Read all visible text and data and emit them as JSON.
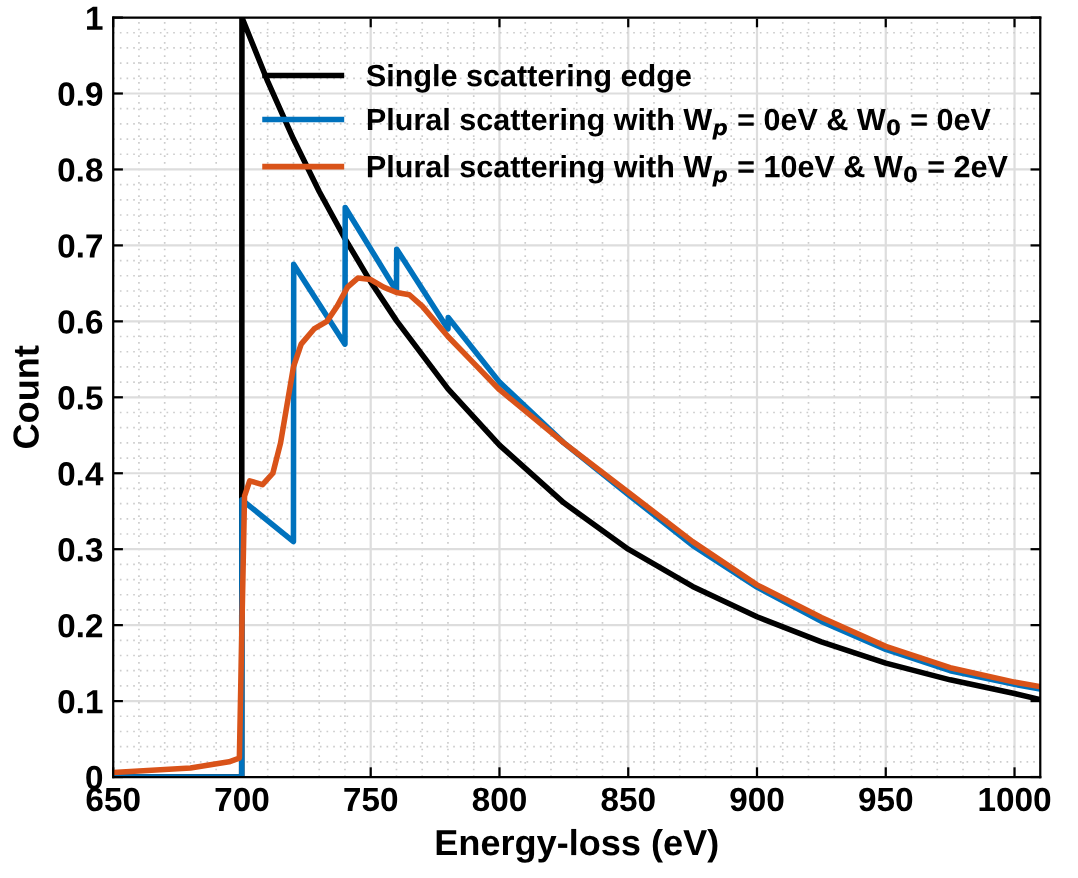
{
  "chart_data": {
    "type": "line",
    "xlabel": "Energy-loss (eV)",
    "ylabel": "Count",
    "xlim": [
      650,
      1010
    ],
    "ylim": [
      0,
      1
    ],
    "xticks": [
      650,
      700,
      750,
      800,
      850,
      900,
      950,
      1000
    ],
    "yticks": [
      0,
      0.1,
      0.2,
      0.3,
      0.4,
      0.5,
      0.6,
      0.7,
      0.8,
      0.9,
      1
    ],
    "grid": true,
    "legend": "top right",
    "line_style": "solid",
    "marker": "none",
    "series": [
      {
        "name": "Single scattering edge",
        "color": "#000000",
        "x": [
          650,
          699.9,
          700,
          710,
          720,
          730,
          740,
          750,
          760,
          780,
          800,
          825,
          850,
          875,
          900,
          925,
          950,
          975,
          1000,
          1010
        ],
        "values": [
          0,
          0,
          1,
          0.916,
          0.84,
          0.771,
          0.709,
          0.652,
          0.601,
          0.511,
          0.437,
          0.361,
          0.3,
          0.251,
          0.211,
          0.178,
          0.15,
          0.128,
          0.11,
          0.102
        ]
      },
      {
        "name": "Plural scattering with W$_{p}$ = 0eV & W$_{0}$ = 0eV",
        "color": "#0072bd",
        "x": [
          650,
          699.9,
          700,
          720,
          720.1,
          740,
          740.1,
          760,
          760.1,
          780,
          780.1,
          800,
          825,
          850,
          875,
          900,
          925,
          950,
          975,
          1000,
          1010
        ],
        "values": [
          0,
          0,
          0.365,
          0.31,
          0.675,
          0.57,
          0.75,
          0.64,
          0.695,
          0.59,
          0.605,
          0.52,
          0.44,
          0.372,
          0.305,
          0.25,
          0.205,
          0.168,
          0.14,
          0.122,
          0.116
        ]
      },
      {
        "name": "Plural scattering with W$_{p}$ = 10eV & W$_{0}$ = 2eV",
        "color": "#d95319",
        "x": [
          650,
          680,
          695,
          699,
          700,
          701,
          703,
          708,
          712,
          715,
          718,
          720,
          723,
          728,
          733,
          737,
          741,
          745,
          750,
          755,
          760,
          765,
          770,
          780,
          790,
          800,
          825,
          850,
          875,
          900,
          925,
          950,
          975,
          1000,
          1010
        ],
        "values": [
          0.006,
          0.012,
          0.02,
          0.025,
          0.2,
          0.37,
          0.39,
          0.385,
          0.4,
          0.44,
          0.5,
          0.54,
          0.57,
          0.59,
          0.6,
          0.62,
          0.645,
          0.657,
          0.655,
          0.645,
          0.638,
          0.635,
          0.62,
          0.58,
          0.545,
          0.51,
          0.44,
          0.375,
          0.31,
          0.253,
          0.21,
          0.172,
          0.144,
          0.125,
          0.119
        ]
      }
    ]
  }
}
